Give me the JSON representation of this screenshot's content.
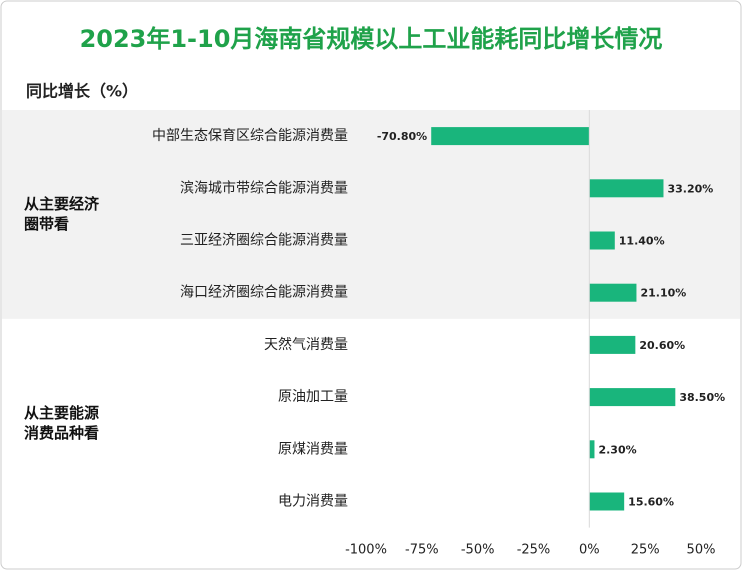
{
  "chart_data": {
    "type": "bar",
    "orientation": "horizontal",
    "title": "2023年1-10月海南省规模以上工业能耗同比增长情况",
    "y_label": "同比增长（%）",
    "color": "#19b57c",
    "xlim": [
      -100,
      50
    ],
    "xticks": [
      {
        "value": -100,
        "label": "-100%"
      },
      {
        "value": -75,
        "label": "-75%"
      },
      {
        "value": -50,
        "label": "-50%"
      },
      {
        "value": -25,
        "label": "-25%"
      },
      {
        "value": 0,
        "label": "0%"
      },
      {
        "value": 25,
        "label": "25%"
      },
      {
        "value": 50,
        "label": "50%"
      }
    ],
    "groups": [
      {
        "name": "从主要经济圈带看",
        "categories": [
          "中部生态保育区综合能源消费量",
          "滨海城市带综合能源消费量",
          "三亚经济圈综合能源消费量",
          "海口经济圈综合能源消费量"
        ],
        "values": [
          -70.8,
          33.2,
          11.4,
          21.1
        ],
        "value_labels": [
          "-70.80%",
          "33.20%",
          "11.40%",
          "21.10%"
        ]
      },
      {
        "name": "从主要能源消费品种看",
        "categories": [
          "天然气消费量",
          "原油加工量",
          "原煤消费量",
          "电力消费量"
        ],
        "values": [
          20.6,
          38.5,
          2.3,
          15.6
        ],
        "value_labels": [
          "20.60%",
          "38.50%",
          "2.30%",
          "15.60%"
        ]
      }
    ]
  }
}
